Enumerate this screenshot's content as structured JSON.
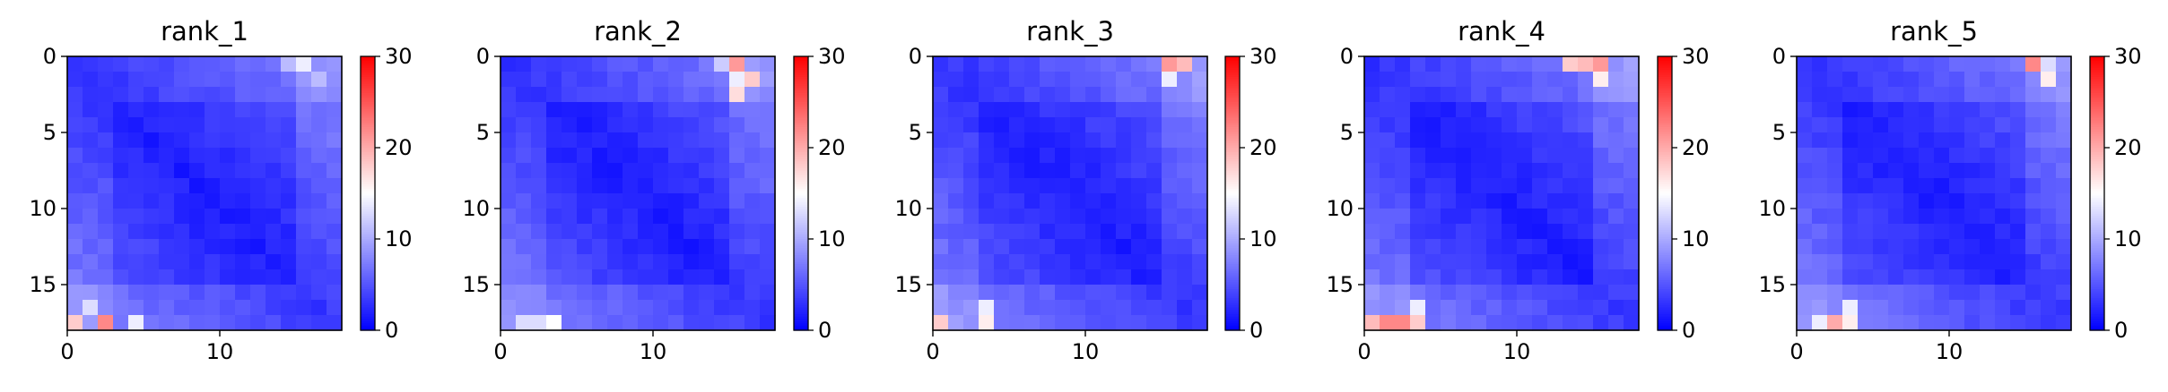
{
  "chart_data": [
    {
      "type": "heatmap",
      "title": "rank_1",
      "size": 18,
      "seed": 11,
      "colormap": "bwr",
      "clim": [
        0,
        30
      ],
      "x_ticks": [
        0,
        10
      ],
      "y_ticks": [
        0,
        5,
        10,
        15
      ],
      "colorbar_ticks": [
        0,
        10,
        20,
        30
      ],
      "hot_cells": [
        [
          17,
          2,
          22
        ],
        [
          17,
          0,
          18
        ],
        [
          16,
          1,
          13
        ],
        [
          17,
          4,
          14
        ],
        [
          0,
          15,
          14
        ],
        [
          0,
          14,
          11
        ],
        [
          1,
          16,
          11
        ]
      ]
    },
    {
      "type": "heatmap",
      "title": "rank_2",
      "size": 18,
      "seed": 23,
      "colormap": "bwr",
      "clim": [
        0,
        30
      ],
      "x_ticks": [
        0,
        10
      ],
      "y_ticks": [
        0,
        5,
        10,
        15
      ],
      "colorbar_ticks": [
        0,
        10,
        20,
        30
      ],
      "hot_cells": [
        [
          0,
          15,
          21
        ],
        [
          1,
          16,
          18
        ],
        [
          2,
          15,
          17
        ],
        [
          1,
          15,
          14
        ],
        [
          0,
          14,
          12
        ],
        [
          17,
          3,
          15
        ],
        [
          17,
          2,
          13
        ],
        [
          17,
          1,
          13
        ]
      ]
    },
    {
      "type": "heatmap",
      "title": "rank_3",
      "size": 18,
      "seed": 37,
      "colormap": "bwr",
      "clim": [
        0,
        30
      ],
      "x_ticks": [
        0,
        10
      ],
      "y_ticks": [
        0,
        5,
        10,
        15
      ],
      "colorbar_ticks": [
        0,
        10,
        20,
        30
      ],
      "hot_cells": [
        [
          0,
          15,
          21
        ],
        [
          0,
          16,
          19
        ],
        [
          17,
          0,
          18
        ],
        [
          17,
          3,
          16
        ],
        [
          16,
          3,
          14
        ],
        [
          1,
          15,
          14
        ]
      ]
    },
    {
      "type": "heatmap",
      "title": "rank_4",
      "size": 18,
      "seed": 53,
      "colormap": "bwr",
      "clim": [
        0,
        30
      ],
      "x_ticks": [
        0,
        10
      ],
      "y_ticks": [
        0,
        5,
        10,
        15
      ],
      "colorbar_ticks": [
        0,
        10,
        20,
        30
      ],
      "hot_cells": [
        [
          17,
          1,
          22
        ],
        [
          17,
          2,
          22
        ],
        [
          17,
          0,
          19
        ],
        [
          17,
          3,
          18
        ],
        [
          0,
          15,
          21
        ],
        [
          0,
          14,
          19
        ],
        [
          0,
          13,
          18
        ],
        [
          1,
          15,
          16
        ],
        [
          16,
          3,
          14
        ]
      ]
    },
    {
      "type": "heatmap",
      "title": "rank_5",
      "size": 18,
      "seed": 71,
      "colormap": "bwr",
      "clim": [
        0,
        30
      ],
      "x_ticks": [
        0,
        10
      ],
      "y_ticks": [
        0,
        5,
        10,
        15
      ],
      "colorbar_ticks": [
        0,
        10,
        20,
        30
      ],
      "hot_cells": [
        [
          0,
          15,
          22
        ],
        [
          17,
          2,
          20
        ],
        [
          1,
          16,
          16
        ],
        [
          17,
          3,
          16
        ],
        [
          17,
          1,
          14
        ],
        [
          16,
          3,
          14
        ],
        [
          0,
          16,
          13
        ]
      ]
    }
  ]
}
